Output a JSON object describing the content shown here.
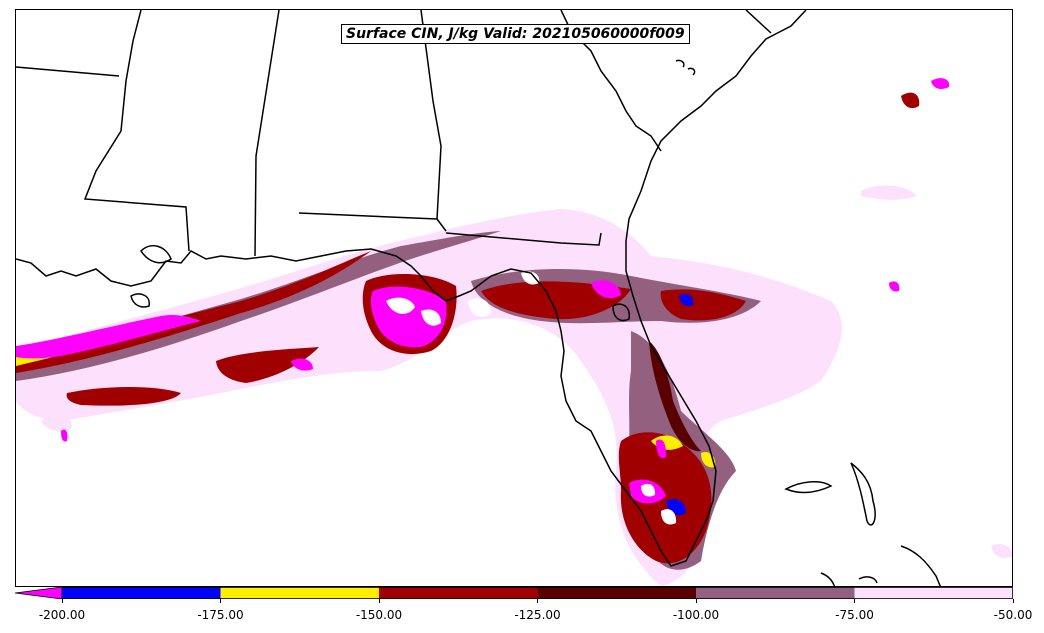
{
  "title": "Surface CIN, J/kg Valid: 202105060000f009",
  "colorbar": {
    "extend_color": "#ff00ff",
    "bins": [
      {
        "from": -200,
        "to": -175,
        "color": "#0000ff"
      },
      {
        "from": -175,
        "to": -150,
        "color": "#ffee00"
      },
      {
        "from": -150,
        "to": -125,
        "color": "#a00000"
      },
      {
        "from": -125,
        "to": -100,
        "color": "#5a0000"
      },
      {
        "from": -100,
        "to": -75,
        "color": "#946080"
      },
      {
        "from": -75,
        "to": -50,
        "color": "#fce0fc"
      }
    ],
    "tick_labels": [
      "-200.00",
      "-175.00",
      "-150.00",
      "-125.00",
      "-100.00",
      "-75.00",
      "-50.00"
    ]
  },
  "colors": {
    "lightest": "#fce0fc",
    "light_mauve": "#946080",
    "dark_maroon": "#5a0000",
    "dark_red": "#a00000",
    "yellow": "#ffee00",
    "blue": "#0000ff",
    "magenta": "#ff00ff"
  }
}
